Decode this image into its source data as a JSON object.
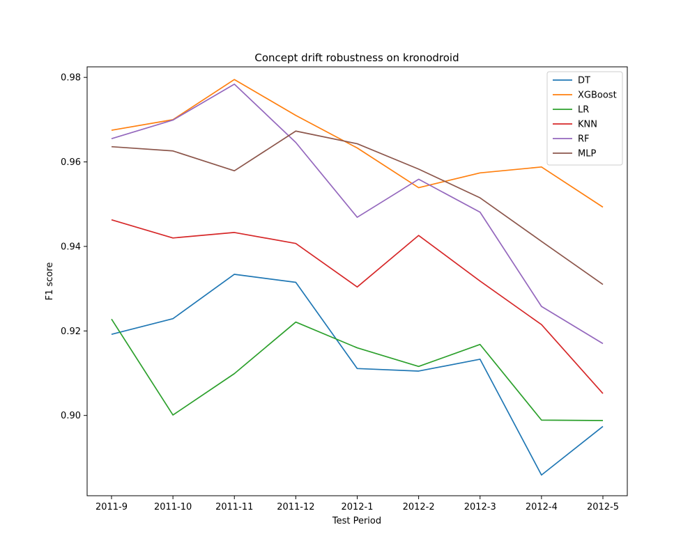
{
  "chart_data": {
    "type": "line",
    "title": "Concept drift robustness on kronodroid",
    "xlabel": "Test Period",
    "ylabel": "F1 score",
    "categories": [
      "2011-9",
      "2011-10",
      "2011-11",
      "2011-12",
      "2012-1",
      "2012-2",
      "2012-3",
      "2012-4",
      "2012-5"
    ],
    "ylim": [
      0.881,
      0.9825
    ],
    "yticks": [
      0.9,
      0.92,
      0.94,
      0.96,
      0.98
    ],
    "ytick_labels": [
      "0.90",
      "0.92",
      "0.94",
      "0.96",
      "0.98"
    ],
    "legend_position": "top-right",
    "grid": false,
    "series": [
      {
        "name": "DT",
        "color": "#1f77b4",
        "values": [
          0.9192,
          0.9229,
          0.9334,
          0.9315,
          0.9111,
          0.9105,
          0.9133,
          0.8859,
          0.8974
        ]
      },
      {
        "name": "XGBoost",
        "color": "#ff7f0e",
        "values": [
          0.9675,
          0.97,
          0.9795,
          0.971,
          0.9633,
          0.9539,
          0.9574,
          0.9588,
          0.9493
        ]
      },
      {
        "name": "LR",
        "color": "#2ca02c",
        "values": [
          0.9228,
          0.9001,
          0.9099,
          0.9221,
          0.916,
          0.9116,
          0.9168,
          0.8989,
          0.8988
        ]
      },
      {
        "name": "KNN",
        "color": "#d62728",
        "values": [
          0.9463,
          0.942,
          0.9433,
          0.9407,
          0.9304,
          0.9426,
          0.9318,
          0.9215,
          0.9052
        ]
      },
      {
        "name": "RF",
        "color": "#9467bd",
        "values": [
          0.9655,
          0.9699,
          0.9784,
          0.9646,
          0.9469,
          0.9559,
          0.9481,
          0.9258,
          0.917
        ]
      },
      {
        "name": "MLP",
        "color": "#8c564b",
        "values": [
          0.9636,
          0.9626,
          0.9579,
          0.9673,
          0.9643,
          0.9583,
          0.9515,
          0.9412,
          0.931
        ]
      }
    ]
  }
}
